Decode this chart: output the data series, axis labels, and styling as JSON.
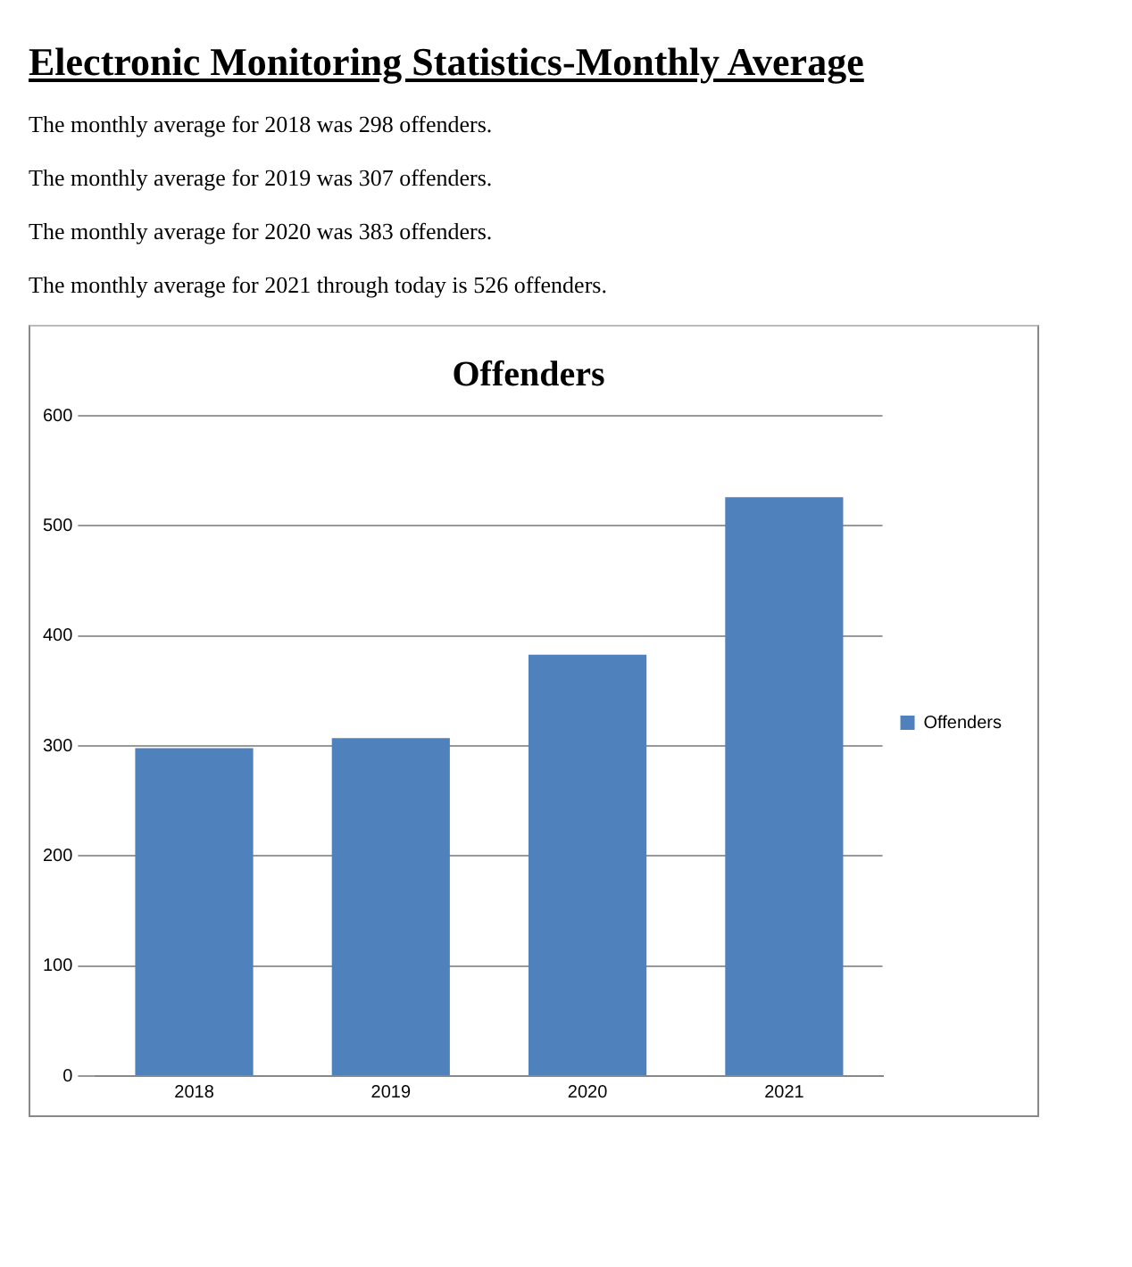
{
  "chart_data": {
    "type": "bar",
    "title": "Offenders",
    "subtitle": "Electronic Monitoring Statistics-Monthly Average",
    "annotations": [
      "The monthly average for 2018 was 298 offenders.",
      "The monthly average for 2019 was 307 offenders.",
      "The monthly average for 2020 was 383 offenders.",
      "The monthly average for 2021 through today is 526 offenders."
    ],
    "categories": [
      "2018",
      "2019",
      "2020",
      "2021"
    ],
    "series": [
      {
        "name": "Offenders",
        "color": "#4f81bd",
        "values": [
          298,
          307,
          383,
          526
        ]
      }
    ],
    "ylim": [
      0,
      600
    ],
    "yticks": [
      0,
      100,
      200,
      300,
      400,
      500,
      600
    ],
    "grid": "y",
    "legend": "right"
  }
}
